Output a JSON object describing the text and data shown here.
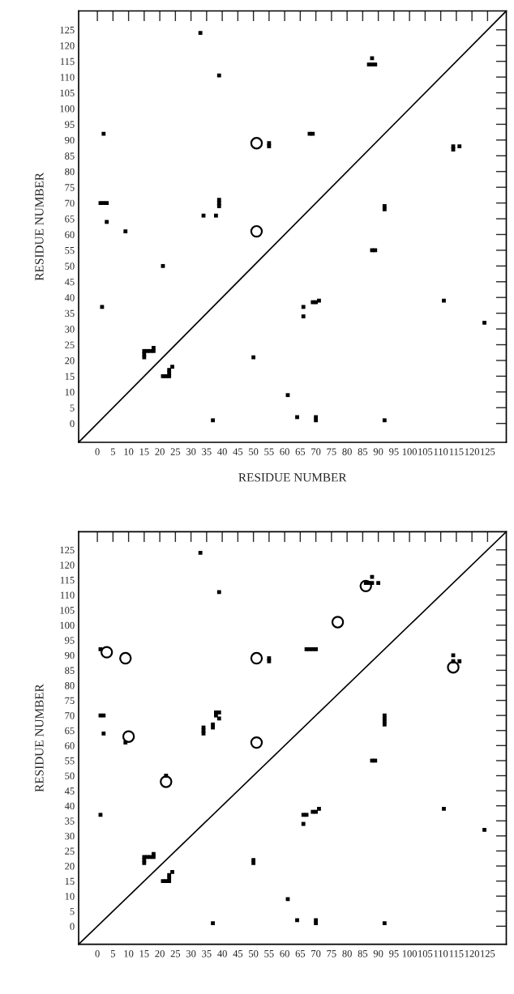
{
  "chart_data": [
    {
      "type": "scatter",
      "xlabel": "RESIDUE NUMBER",
      "ylabel": "RESIDUE NUMBER",
      "xlim": [
        -6,
        131
      ],
      "ylim": [
        -6,
        131
      ],
      "xticks": [
        0,
        5,
        10,
        15,
        20,
        25,
        30,
        35,
        40,
        45,
        50,
        55,
        60,
        65,
        70,
        75,
        80,
        85,
        90,
        95,
        100,
        105,
        110,
        115,
        120,
        125
      ],
      "yticks": [
        0,
        5,
        10,
        15,
        20,
        25,
        30,
        35,
        40,
        45,
        50,
        55,
        60,
        65,
        70,
        75,
        80,
        85,
        90,
        95,
        100,
        105,
        110,
        115,
        120,
        125
      ],
      "grid": false,
      "legend": false,
      "series": [
        {
          "type": "line",
          "color": "#000000",
          "marker": "none",
          "x": [
            -6,
            131
          ],
          "values": [
            -6,
            131
          ]
        },
        {
          "color": "#000000",
          "marker": "square",
          "x": [
            33,
            39,
            87,
            88,
            89,
            88,
            2,
            68,
            69,
            55,
            55,
            114,
            114,
            116,
            1,
            2,
            3,
            3,
            9,
            34,
            38,
            39,
            39,
            39,
            92,
            92,
            88,
            89,
            21,
            1.5,
            66,
            66,
            69,
            70,
            71,
            111,
            124,
            15,
            15,
            15,
            16,
            17,
            18,
            18,
            21,
            22,
            23,
            23,
            23,
            24,
            50,
            61,
            64,
            70,
            70,
            37,
            92
          ],
          "values": [
            124,
            110.5,
            114,
            114,
            114,
            116,
            92,
            92,
            92,
            88,
            89,
            87,
            88,
            88,
            70,
            70,
            70,
            64,
            61,
            66,
            66,
            71,
            70,
            69,
            68,
            69,
            55,
            55,
            50,
            37,
            37,
            34,
            38.5,
            38.5,
            39,
            39,
            32,
            21,
            22,
            23,
            23,
            23,
            23,
            24,
            15,
            15,
            15,
            16,
            17,
            18,
            21,
            9,
            2,
            1,
            2,
            1,
            1
          ]
        },
        {
          "color": "#000000",
          "marker": "circle",
          "x": [
            51,
            51
          ],
          "values": [
            89,
            61
          ]
        }
      ]
    },
    {
      "type": "scatter",
      "ylabel": "RESIDUE NUMBER",
      "xlim": [
        -6,
        131
      ],
      "ylim": [
        -6,
        131
      ],
      "xticks": [
        0,
        5,
        10,
        15,
        20,
        25,
        30,
        35,
        40,
        45,
        50,
        55,
        60,
        65,
        70,
        75,
        80,
        85,
        90,
        95,
        100,
        105,
        110,
        115,
        120,
        125
      ],
      "yticks": [
        0,
        5,
        10,
        15,
        20,
        25,
        30,
        35,
        40,
        45,
        50,
        55,
        60,
        65,
        70,
        75,
        80,
        85,
        90,
        95,
        100,
        105,
        110,
        115,
        120,
        125
      ],
      "grid": false,
      "legend": false,
      "series": [
        {
          "type": "line",
          "color": "#000000",
          "marker": "none",
          "x": [
            -6,
            131
          ],
          "values": [
            -6,
            131
          ]
        },
        {
          "color": "#000000",
          "marker": "square",
          "x": [
            33,
            39,
            88,
            86,
            87,
            88,
            90,
            67,
            68,
            69,
            70,
            1,
            55,
            55,
            114,
            114,
            116,
            1,
            2,
            2,
            9,
            34,
            34,
            34,
            37,
            37,
            38,
            39,
            38,
            39,
            92,
            92,
            92,
            92,
            88,
            89,
            22,
            1,
            66,
            67,
            66,
            69,
            70,
            71,
            111,
            124,
            15,
            15,
            15,
            16,
            17,
            18,
            18,
            21,
            22,
            23,
            23,
            23,
            24,
            50,
            50,
            61,
            64,
            70,
            70,
            37,
            92
          ],
          "values": [
            124,
            111,
            116,
            114,
            114,
            114,
            114,
            92,
            92,
            92,
            92,
            92,
            88,
            89,
            90,
            88,
            88,
            70,
            70,
            64,
            61,
            64,
            65,
            66,
            66,
            67,
            71,
            71,
            70,
            69,
            67,
            68,
            69,
            70,
            55,
            55,
            50,
            37,
            37,
            37,
            34,
            38,
            38,
            39,
            39,
            32,
            21,
            22,
            23,
            23,
            23,
            23,
            24,
            15,
            15,
            15,
            16,
            17,
            18,
            21,
            22,
            9,
            2,
            1,
            2,
            1,
            1
          ]
        },
        {
          "color": "#000000",
          "marker": "circle",
          "x": [
            86,
            77,
            3,
            9,
            51,
            114,
            10,
            51,
            22
          ],
          "values": [
            113,
            101,
            91,
            89,
            89,
            86,
            63,
            61,
            48
          ]
        }
      ]
    }
  ]
}
